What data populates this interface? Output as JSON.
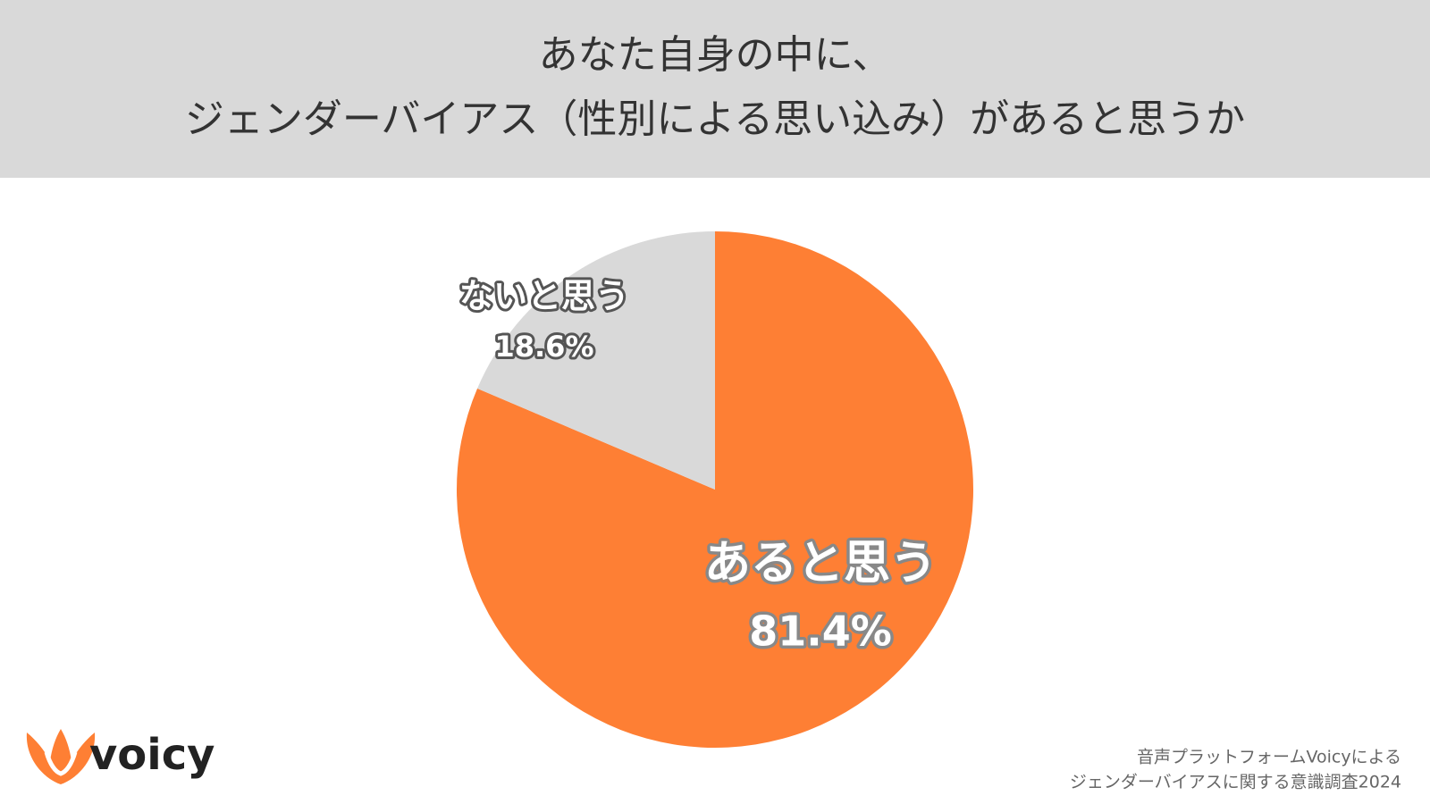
{
  "chart_data": {
    "type": "pie",
    "title": [
      "あなた自身の中に、",
      "ジェンダーバイアス（性別による思い込み）があると思うか"
    ],
    "categories": [
      "あると思う",
      "ないと思う"
    ],
    "values": [
      81.4,
      18.6
    ],
    "value_labels": [
      "81.4%",
      "18.6%"
    ],
    "colors": [
      "#fe7f34",
      "#d9d9d9"
    ]
  },
  "footer": {
    "source": [
      "音声プラットフォームVoicyによる",
      "ジェンダーバイアスに関する意識調査2024"
    ],
    "logo": "voicy"
  }
}
